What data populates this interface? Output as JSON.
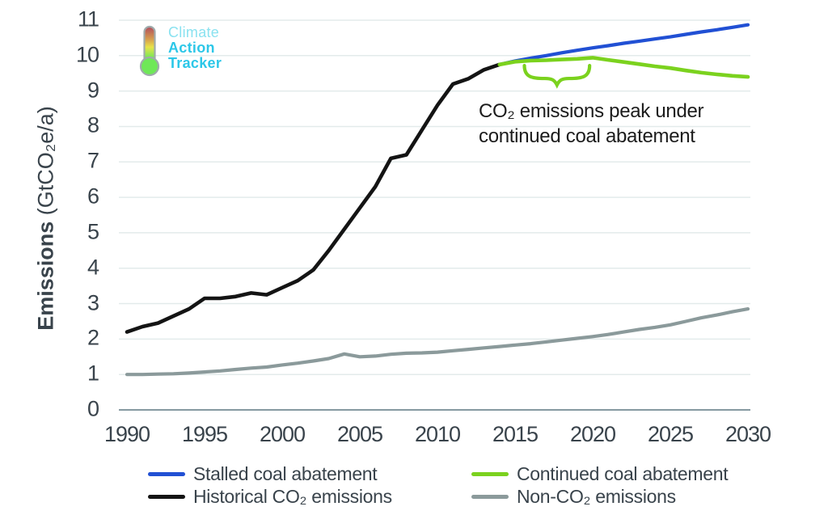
{
  "logo": {
    "line1": "Climate",
    "line2": "Action",
    "line3": "Tracker",
    "icon": "thermometer-icon"
  },
  "annotation": {
    "line1": "CO₂ emissions peak under",
    "line2": "continued coal abatement"
  },
  "chart_data": {
    "type": "line",
    "title": "",
    "ylabel": "Emissions (GtCO₂e/a)",
    "ylabel_bold": "Emissions",
    "ylabel_unit": " (GtCO₂e/a)",
    "x_range": [
      1990,
      2030
    ],
    "y_range": [
      0,
      11
    ],
    "x_ticks": [
      1990,
      1995,
      2000,
      2005,
      2010,
      2015,
      2020,
      2025,
      2030
    ],
    "y_ticks": [
      0,
      1,
      2,
      3,
      4,
      5,
      6,
      7,
      8,
      9,
      10,
      11
    ],
    "grid": "horizontal",
    "legend_position": "bottom",
    "series": [
      {
        "name": "Non-CO₂ emissions",
        "color": "#8b9a9b",
        "width": 4.2,
        "points": [
          [
            1990,
            1.0
          ],
          [
            1991,
            1.0
          ],
          [
            1992,
            1.01
          ],
          [
            1993,
            1.02
          ],
          [
            1994,
            1.04
          ],
          [
            1995,
            1.07
          ],
          [
            1996,
            1.1
          ],
          [
            1997,
            1.14
          ],
          [
            1998,
            1.18
          ],
          [
            1999,
            1.21
          ],
          [
            2000,
            1.27
          ],
          [
            2001,
            1.32
          ],
          [
            2002,
            1.38
          ],
          [
            2003,
            1.45
          ],
          [
            2004,
            1.58
          ],
          [
            2005,
            1.5
          ],
          [
            2006,
            1.52
          ],
          [
            2007,
            1.57
          ],
          [
            2008,
            1.6
          ],
          [
            2009,
            1.61
          ],
          [
            2010,
            1.63
          ],
          [
            2011,
            1.67
          ],
          [
            2012,
            1.71
          ],
          [
            2013,
            1.75
          ],
          [
            2014,
            1.79
          ],
          [
            2015,
            1.83
          ],
          [
            2016,
            1.87
          ],
          [
            2017,
            1.92
          ],
          [
            2018,
            1.97
          ],
          [
            2019,
            2.02
          ],
          [
            2020,
            2.07
          ],
          [
            2021,
            2.13
          ],
          [
            2022,
            2.2
          ],
          [
            2023,
            2.27
          ],
          [
            2024,
            2.33
          ],
          [
            2025,
            2.4
          ],
          [
            2026,
            2.5
          ],
          [
            2027,
            2.6
          ],
          [
            2028,
            2.68
          ],
          [
            2029,
            2.77
          ],
          [
            2030,
            2.85
          ]
        ]
      },
      {
        "name": "Historical CO₂ emissions",
        "color": "#141414",
        "width": 4.6,
        "points": [
          [
            1990,
            2.2
          ],
          [
            1991,
            2.35
          ],
          [
            1992,
            2.45
          ],
          [
            1993,
            2.65
          ],
          [
            1994,
            2.85
          ],
          [
            1995,
            3.15
          ],
          [
            1996,
            3.15
          ],
          [
            1997,
            3.2
          ],
          [
            1998,
            3.3
          ],
          [
            1999,
            3.25
          ],
          [
            2000,
            3.45
          ],
          [
            2001,
            3.65
          ],
          [
            2002,
            3.95
          ],
          [
            2003,
            4.5
          ],
          [
            2004,
            5.1
          ],
          [
            2005,
            5.7
          ],
          [
            2006,
            6.3
          ],
          [
            2007,
            7.1
          ],
          [
            2008,
            7.2
          ],
          [
            2009,
            7.9
          ],
          [
            2010,
            8.6
          ],
          [
            2011,
            9.2
          ],
          [
            2012,
            9.35
          ],
          [
            2013,
            9.6
          ],
          [
            2014,
            9.75
          ]
        ]
      },
      {
        "name": "Stalled coal abatement",
        "color": "#2150d4",
        "width": 4.2,
        "points": [
          [
            2014,
            9.75
          ],
          [
            2015,
            9.85
          ],
          [
            2016,
            9.93
          ],
          [
            2017,
            10.0
          ],
          [
            2018,
            10.08
          ],
          [
            2019,
            10.15
          ],
          [
            2020,
            10.22
          ],
          [
            2021,
            10.28
          ],
          [
            2022,
            10.35
          ],
          [
            2023,
            10.41
          ],
          [
            2024,
            10.47
          ],
          [
            2025,
            10.53
          ],
          [
            2026,
            10.6
          ],
          [
            2027,
            10.67
          ],
          [
            2028,
            10.73
          ],
          [
            2029,
            10.8
          ],
          [
            2030,
            10.87
          ]
        ]
      },
      {
        "name": "Continued coal abatement",
        "color": "#7bd21e",
        "width": 4.6,
        "points": [
          [
            2014,
            9.75
          ],
          [
            2015,
            9.83
          ],
          [
            2016,
            9.86
          ],
          [
            2017,
            9.87
          ],
          [
            2018,
            9.89
          ],
          [
            2019,
            9.91
          ],
          [
            2020,
            9.94
          ],
          [
            2021,
            9.88
          ],
          [
            2022,
            9.82
          ],
          [
            2023,
            9.76
          ],
          [
            2024,
            9.7
          ],
          [
            2025,
            9.65
          ],
          [
            2026,
            9.58
          ],
          [
            2027,
            9.52
          ],
          [
            2028,
            9.47
          ],
          [
            2029,
            9.43
          ],
          [
            2030,
            9.4
          ]
        ]
      }
    ],
    "brace": {
      "from_year": 2015.6,
      "to_year": 2019.8,
      "at_value": 9.72,
      "color": "#7bd21e"
    }
  },
  "legend": {
    "items": [
      {
        "label": "Stalled coal abatement",
        "color": "#2150d4"
      },
      {
        "label": "Continued coal abatement",
        "color": "#7bd21e"
      },
      {
        "label": "Historical CO₂ emissions",
        "color": "#141414"
      },
      {
        "label": "Non-CO₂ emissions",
        "color": "#8b9a9b"
      }
    ]
  },
  "colors": {
    "grid": "#e3ebeb",
    "axis": "#8699a1",
    "tick_text": "#39434b",
    "annotation_text": "#1c1c1c",
    "logo_cyan": "#2cc7e8",
    "logo_light_cyan": "#8ae2f0"
  }
}
